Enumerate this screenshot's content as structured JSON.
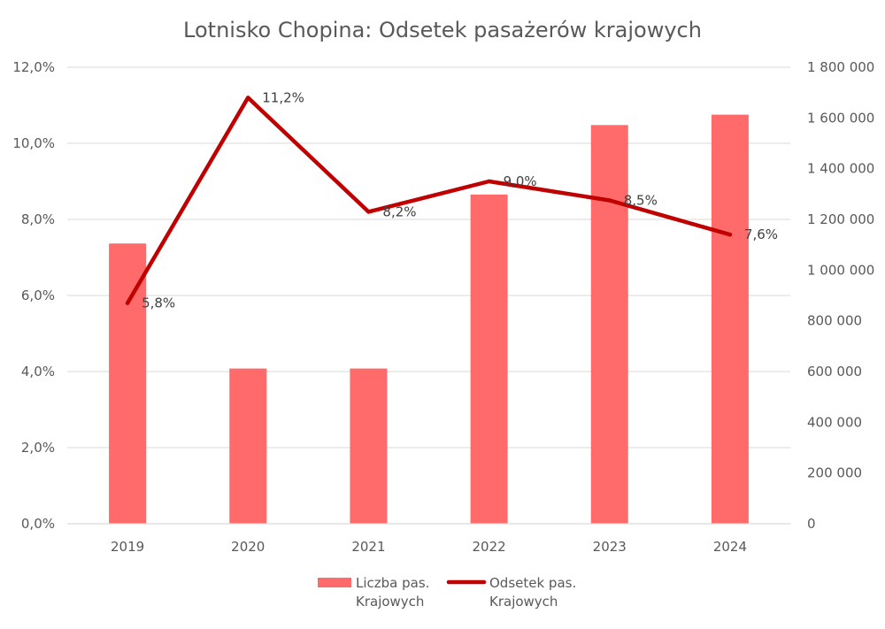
{
  "chart_data": {
    "type": "bar+line",
    "title": "Lotnisko Chopina: Odsetek pasażerów krajowych",
    "categories": [
      "2019",
      "2020",
      "2021",
      "2022",
      "2023",
      "2024"
    ],
    "series": [
      {
        "name": "Liczba pas. Krajowych",
        "name_lines": [
          "Liczba pas.",
          "Krajowych"
        ],
        "type": "bar",
        "axis": "right",
        "color": "#ff6b6b",
        "values": [
          1105000,
          612000,
          612000,
          1298000,
          1572000,
          1613000
        ]
      },
      {
        "name": "Odsetek pas. Krajowych",
        "name_lines": [
          "Odsetek pas.",
          "Krajowych"
        ],
        "type": "line",
        "axis": "left",
        "color": "#c00000",
        "values": [
          5.8,
          11.2,
          8.2,
          9.0,
          8.5,
          7.6
        ],
        "labels": [
          "5,8%",
          "11,2%",
          "8,2%",
          "9,0%",
          "8,5%",
          "7,6%"
        ]
      }
    ],
    "y_left": {
      "ylim": [
        0,
        12
      ],
      "ticks": [
        0,
        2,
        4,
        6,
        8,
        10,
        12
      ],
      "tick_labels": [
        "0,0%",
        "2,0%",
        "4,0%",
        "6,0%",
        "8,0%",
        "10,0%",
        "12,0%"
      ]
    },
    "y_right": {
      "ylim": [
        0,
        1800000
      ],
      "ticks": [
        0,
        200000,
        400000,
        600000,
        800000,
        1000000,
        1200000,
        1400000,
        1600000,
        1800000
      ],
      "tick_labels": [
        "0",
        "200 000",
        "400 000",
        "600 000",
        "800 000",
        "1 000 000",
        "1 200 000",
        "1 400 000",
        "1 600 000",
        "1 800 000"
      ]
    },
    "grid": true,
    "grid_color": "#d9d9d9",
    "legend_position": "bottom"
  }
}
